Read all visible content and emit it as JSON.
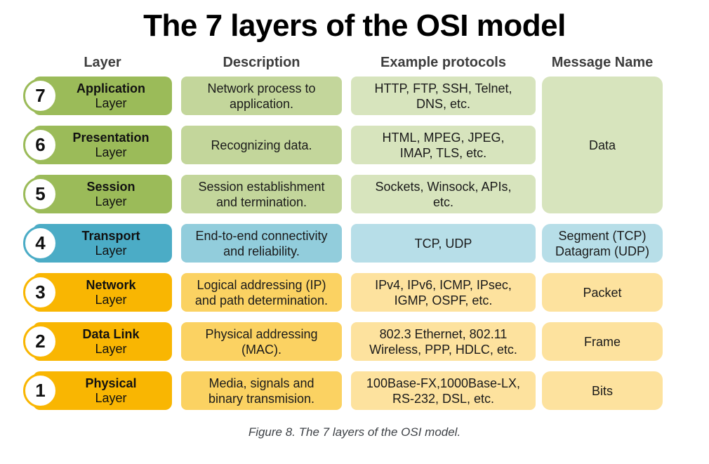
{
  "title": "The 7 layers of the OSI model",
  "headers": {
    "layer": "Layer",
    "description": "Description",
    "protocols": "Example protocols",
    "message": "Message Name"
  },
  "labels": {
    "layer_word": "Layer"
  },
  "rows": [
    {
      "number": "7",
      "name": "Application",
      "theme": "green",
      "description": "Network process to\napplication.",
      "protocols": "HTTP, FTP, SSH, Telnet,\nDNS, etc."
    },
    {
      "number": "6",
      "name": "Presentation",
      "theme": "green",
      "description": "Recognizing data.",
      "protocols": "HTML, MPEG, JPEG,\nIMAP, TLS, etc."
    },
    {
      "number": "5",
      "name": "Session",
      "theme": "green",
      "description": "Session establishment\nand termination.",
      "protocols": "Sockets, Winsock, APIs,\netc."
    },
    {
      "number": "4",
      "name": "Transport",
      "theme": "blue",
      "description": "End-to-end connectivity\nand reliability.",
      "protocols": "TCP, UDP",
      "message": "Segment (TCP)\nDatagram (UDP)"
    },
    {
      "number": "3",
      "name": "Network",
      "theme": "orange",
      "description": "Logical addressing (IP)\nand path determination.",
      "protocols": "IPv4, IPv6, ICMP, IPsec,\nIGMP, OSPF, etc.",
      "message": "Packet"
    },
    {
      "number": "2",
      "name": "Data Link",
      "theme": "orange",
      "description": "Physical addressing\n(MAC).",
      "protocols": "802.3 Ethernet, 802.11\nWireless, PPP, HDLC, etc.",
      "message": "Frame"
    },
    {
      "number": "1",
      "name": "Physical",
      "theme": "orange",
      "description": "Media, signals and\nbinary transmision.",
      "protocols": "100Base-FX,1000Base-LX,\nRS-232, DSL, etc.",
      "message": "Bits"
    }
  ],
  "shared_message": {
    "label": "Data",
    "applies_to_layers": [
      7,
      6,
      5
    ]
  },
  "caption": "Figure 8. The 7 layers of the OSI model.",
  "colors": {
    "green_pill": "#9BBB59",
    "green_desc": "#C3D69B",
    "green_light": "#D7E4BD",
    "blue_pill": "#4BACC6",
    "blue_desc": "#92CDDC",
    "blue_light": "#B7DEE8",
    "orange_pill": "#F9B602",
    "orange_desc": "#FBD262",
    "orange_light": "#FDE29E",
    "title_color": "#000000",
    "header_color": "#3D3D3D",
    "caption_color": "#3E4247"
  }
}
